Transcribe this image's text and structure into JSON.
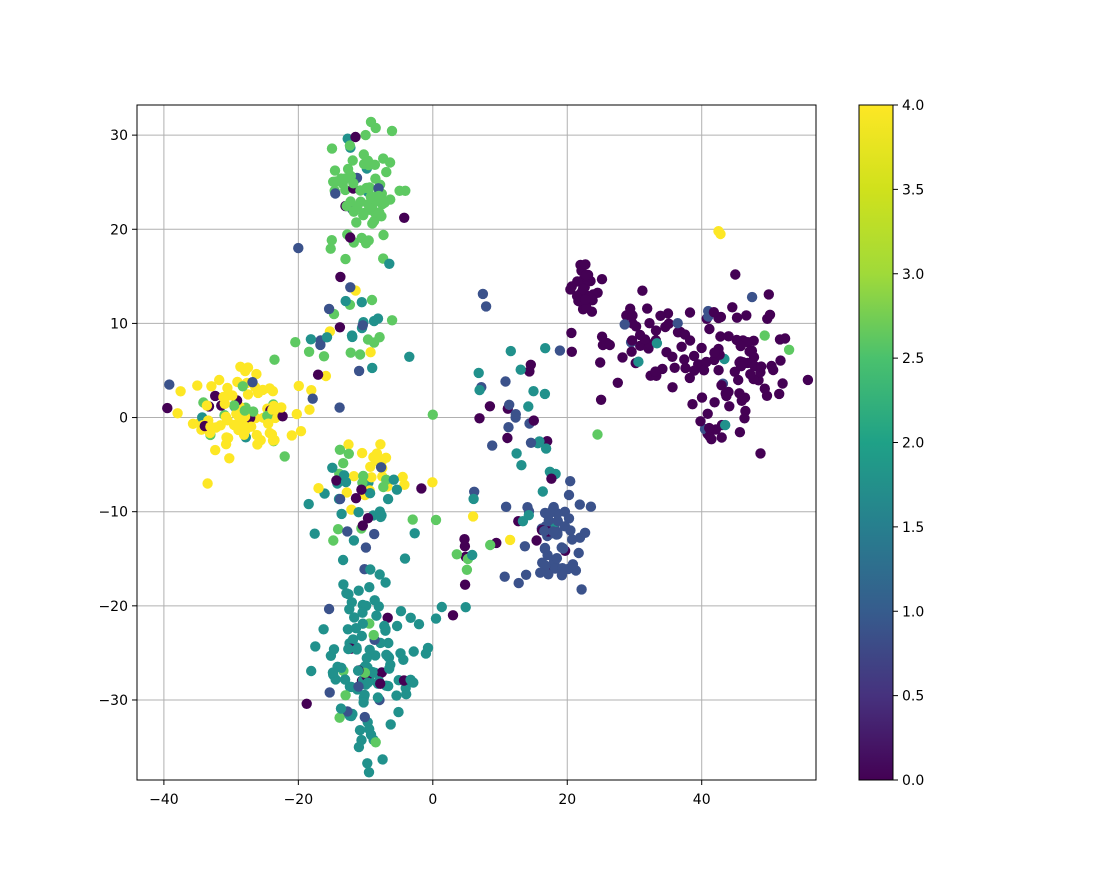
{
  "chart_data": {
    "type": "scatter",
    "title": "",
    "xlabel": "",
    "ylabel": "",
    "xlim": [
      -44,
      57
    ],
    "ylim": [
      -38.5,
      33.2
    ],
    "xticks": [
      -40,
      -20,
      0,
      20,
      40
    ],
    "yticks": [
      -30,
      -20,
      -10,
      0,
      10,
      20,
      30
    ],
    "grid": true,
    "colormap": "viridis",
    "colorbar": {
      "range": [
        0.0,
        4.0
      ],
      "ticks": [
        0.0,
        0.5,
        1.0,
        1.5,
        2.0,
        2.5,
        3.0,
        3.5,
        4.0
      ]
    },
    "point_color": "by-value",
    "colors": {
      "c0": "#440154",
      "c1": "#3b528b",
      "c2": "#21918c",
      "c3": "#5ec962",
      "c4": "#fde725"
    },
    "clusters": [
      {
        "label": 3,
        "center": [
          -10.5,
          23.5
        ],
        "spread": [
          2.6,
          3.6
        ],
        "count": 85,
        "mix": {
          "3": 0.86,
          "2": 0.05,
          "1": 0.05,
          "0": 0.04
        }
      },
      {
        "label": 4,
        "center": [
          -28.5,
          0.5
        ],
        "spread": [
          4.2,
          2.4
        ],
        "count": 110,
        "mix": {
          "4": 0.8,
          "3": 0.08,
          "2": 0.05,
          "0": 0.05,
          "1": 0.02
        }
      },
      {
        "label": 4,
        "center": [
          -9.0,
          -5.5
        ],
        "spread": [
          3.0,
          1.8
        ],
        "count": 30,
        "mix": {
          "4": 0.75,
          "3": 0.15,
          "2": 0.1
        }
      },
      {
        "label": 3,
        "center": [
          -13.0,
          9.0
        ],
        "spread": [
          3.5,
          3.5
        ],
        "count": 40,
        "mix": {
          "3": 0.45,
          "2": 0.2,
          "1": 0.15,
          "4": 0.1,
          "0": 0.1
        }
      },
      {
        "label": 2,
        "center": [
          -11.0,
          -9.5
        ],
        "spread": [
          3.2,
          2.5
        ],
        "count": 35,
        "mix": {
          "2": 0.5,
          "3": 0.2,
          "1": 0.2,
          "0": 0.1
        }
      },
      {
        "label": 2,
        "center": [
          -10.0,
          -26.0
        ],
        "spread": [
          3.6,
          4.8
        ],
        "count": 130,
        "mix": {
          "2": 0.85,
          "1": 0.06,
          "0": 0.05,
          "3": 0.04
        }
      },
      {
        "label": 0,
        "center": [
          22.5,
          13.5
        ],
        "spread": [
          1.6,
          1.5
        ],
        "count": 30,
        "mix": {
          "0": 1.0
        }
      },
      {
        "label": 0,
        "center": [
          31.0,
          7.5
        ],
        "spread": [
          6.0,
          2.2
        ],
        "count": 50,
        "mix": {
          "0": 0.9,
          "1": 0.06,
          "2": 0.04
        }
      },
      {
        "label": 0,
        "center": [
          44.0,
          5.5
        ],
        "spread": [
          4.5,
          3.6
        ],
        "count": 90,
        "mix": {
          "0": 0.9,
          "1": 0.05,
          "2": 0.03,
          "3": 0.02
        }
      },
      {
        "label": 1,
        "center": [
          18.0,
          -13.0
        ],
        "spread": [
          2.2,
          2.6
        ],
        "count": 60,
        "mix": {
          "1": 0.92,
          "0": 0.05,
          "2": 0.03
        }
      },
      {
        "label": 2,
        "center": [
          14.0,
          -2.0
        ],
        "spread": [
          4.0,
          5.5
        ],
        "count": 40,
        "mix": {
          "2": 0.35,
          "1": 0.35,
          "0": 0.3
        }
      },
      {
        "label": 2,
        "center": [
          4.0,
          -13.0
        ],
        "spread": [
          3.0,
          2.8
        ],
        "count": 15,
        "mix": {
          "0": 0.4,
          "2": 0.3,
          "3": 0.3
        }
      }
    ],
    "extra_points": [
      {
        "x": 42.5,
        "y": 19.8,
        "v": 4
      },
      {
        "x": 42.8,
        "y": 19.5,
        "v": 4
      },
      {
        "x": -20.0,
        "y": 18.0,
        "v": 1
      },
      {
        "x": -39.2,
        "y": 3.5,
        "v": 1
      },
      {
        "x": -39.5,
        "y": 1.0,
        "v": 0
      },
      {
        "x": 53.0,
        "y": 7.2,
        "v": 3
      },
      {
        "x": 47.5,
        "y": 12.8,
        "v": 1
      },
      {
        "x": 45.0,
        "y": 15.2,
        "v": 0
      },
      {
        "x": 0.0,
        "y": 0.3,
        "v": 3
      },
      {
        "x": 8.5,
        "y": 1.2,
        "v": 0
      },
      {
        "x": -11.5,
        "y": 29.8,
        "v": 0
      },
      {
        "x": -10.0,
        "y": 30.0,
        "v": 3
      },
      {
        "x": -14.5,
        "y": 23.8,
        "v": 1
      },
      {
        "x": -11.0,
        "y": -35.0,
        "v": 2
      },
      {
        "x": -8.5,
        "y": -34.5,
        "v": 3
      },
      {
        "x": 3.0,
        "y": -21.0,
        "v": 0
      },
      {
        "x": 24.5,
        "y": -1.8,
        "v": 3
      },
      {
        "x": 43.0,
        "y": -0.8,
        "v": 0
      },
      {
        "x": 43.5,
        "y": -0.8,
        "v": 2
      },
      {
        "x": -17.0,
        "y": -7.5,
        "v": 4
      },
      {
        "x": 11.5,
        "y": -13.0,
        "v": 4
      },
      {
        "x": 6.0,
        "y": -10.5,
        "v": 4
      },
      {
        "x": -33.5,
        "y": -7.0,
        "v": 4
      }
    ]
  }
}
